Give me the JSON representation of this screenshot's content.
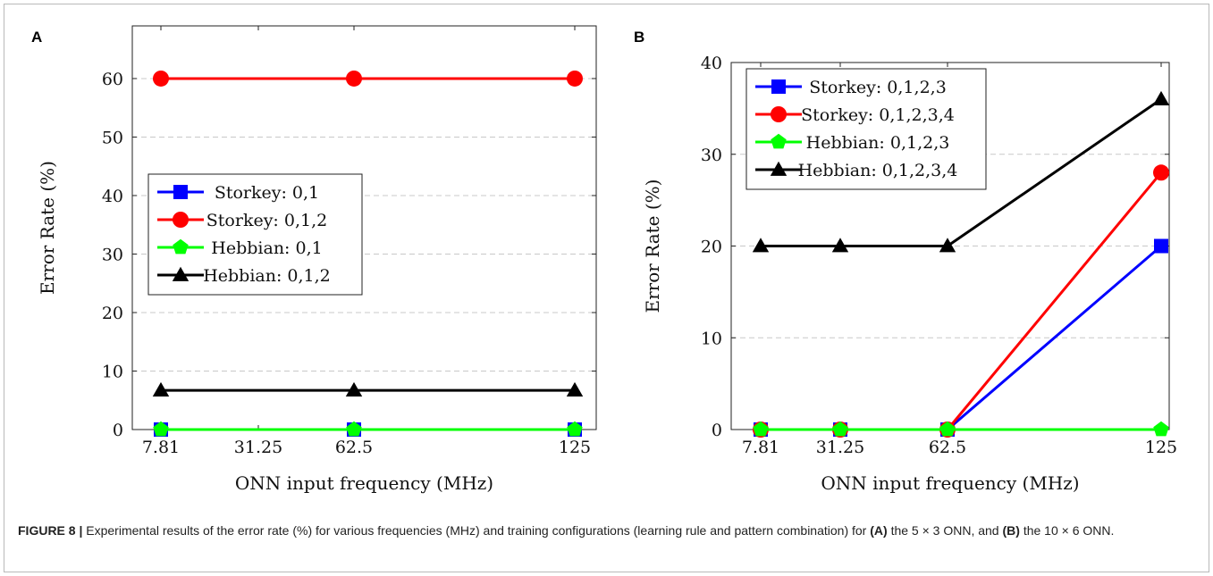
{
  "figure_label": "FIGURE 8 |",
  "caption": {
    "intro": "Experimental results of the error rate (%) for various frequencies (MHz) and training configurations (learning rule and pattern combination) for",
    "part_a": "(A)",
    "mid_a": "the 5 × 3 ONN, and",
    "part_b": "(B)",
    "mid_b": "the 10 × 6 ONN."
  },
  "chart_data": [
    {
      "panel": "A",
      "type": "line",
      "xlabel": "ONN input frequency (MHz)",
      "ylabel": "Error Rate (%)",
      "x_ticks": [
        "7.81",
        "31.25",
        "62.5",
        "125"
      ],
      "y_ticks": [
        0,
        10,
        20,
        30,
        40,
        50,
        60
      ],
      "ylim": [
        0,
        69
      ],
      "grid": "horizontal dashed",
      "legend_position": "center-left",
      "series": [
        {
          "name": "Storkey: 0,1",
          "color": "#0000ff",
          "marker": "square",
          "x": [
            "7.81",
            "62.5",
            "125"
          ],
          "values": [
            0,
            0,
            0
          ]
        },
        {
          "name": "Storkey: 0,1,2",
          "color": "#ff0000",
          "marker": "circle",
          "x": [
            "7.81",
            "62.5",
            "125"
          ],
          "values": [
            60,
            60,
            60
          ]
        },
        {
          "name": "Hebbian: 0,1",
          "color": "#00ff00",
          "marker": "pentagon",
          "x": [
            "7.81",
            "62.5",
            "125"
          ],
          "values": [
            0,
            0,
            0
          ]
        },
        {
          "name": "Hebbian: 0,1,2",
          "color": "#000000",
          "marker": "triangle",
          "x": [
            "7.81",
            "62.5",
            "125"
          ],
          "values": [
            6.7,
            6.7,
            6.7
          ]
        }
      ]
    },
    {
      "panel": "B",
      "type": "line",
      "xlabel": "ONN input frequency (MHz)",
      "ylabel": "Error Rate (%)",
      "x_ticks": [
        "7.81",
        "31.25",
        "62.5",
        "125"
      ],
      "y_ticks": [
        0,
        10,
        20,
        30,
        40
      ],
      "ylim": [
        0,
        40
      ],
      "grid": "horizontal dashed",
      "legend_position": "top-left",
      "series": [
        {
          "name": "Storkey: 0,1,2,3",
          "color": "#0000ff",
          "marker": "square",
          "x": [
            "7.81",
            "31.25",
            "62.5",
            "125"
          ],
          "values": [
            0,
            0,
            0,
            20
          ]
        },
        {
          "name": "Storkey: 0,1,2,3,4",
          "color": "#ff0000",
          "marker": "circle",
          "x": [
            "7.81",
            "31.25",
            "62.5",
            "125"
          ],
          "values": [
            0,
            0,
            0,
            28
          ]
        },
        {
          "name": "Hebbian: 0,1,2,3",
          "color": "#00ff00",
          "marker": "pentagon",
          "x": [
            "7.81",
            "31.25",
            "62.5",
            "125"
          ],
          "values": [
            0,
            0,
            0,
            0
          ]
        },
        {
          "name": "Hebbian: 0,1,2,3,4",
          "color": "#000000",
          "marker": "triangle",
          "x": [
            "7.81",
            "31.25",
            "62.5",
            "125"
          ],
          "values": [
            20,
            20,
            20,
            36
          ]
        }
      ]
    }
  ]
}
